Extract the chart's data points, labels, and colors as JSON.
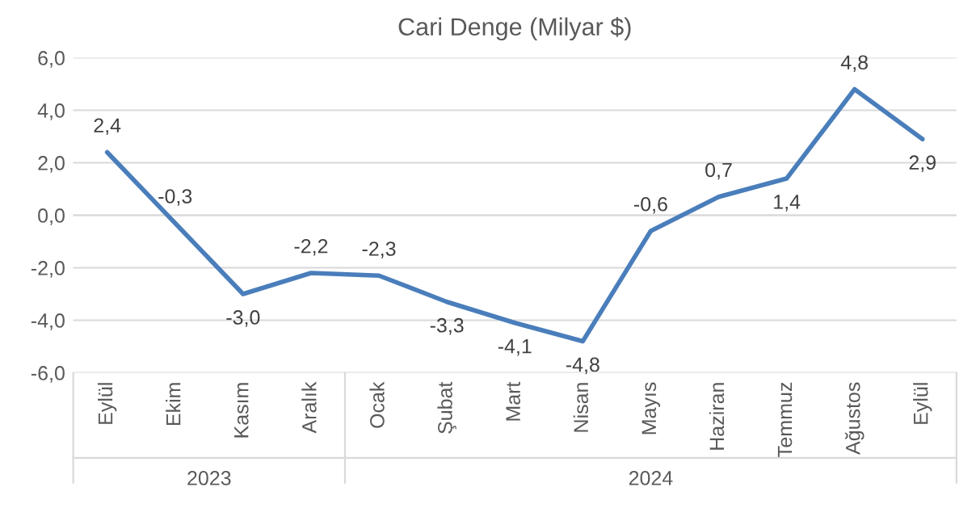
{
  "chart_data": {
    "type": "line",
    "title": "Cari Denge (Milyar $)",
    "categories": [
      "Eylül",
      "Ekim",
      "Kasım",
      "Aralık",
      "Ocak",
      "Şubat",
      "Mart",
      "Nisan",
      "Mayıs",
      "Haziran",
      "Temmuz",
      "Ağustos",
      "Eylül"
    ],
    "series": [
      {
        "color": "#4a7ebb",
        "values": [
          2.4,
          -0.3,
          -3.0,
          -2.2,
          -2.3,
          -3.3,
          -4.1,
          -4.8,
          -0.6,
          0.7,
          1.4,
          4.8,
          2.9
        ],
        "value_labels": [
          "2,4",
          "-0,3",
          "-3,0",
          "-2,2",
          "-2,3",
          "-3,3",
          "-4,1",
          "-4,8",
          "-0,6",
          "0,7",
          "1,4",
          "4,8",
          "2,9"
        ]
      }
    ],
    "ylim": [
      -6,
      6
    ],
    "yticks": [
      {
        "value": -6,
        "label": "-6,0"
      },
      {
        "value": -4,
        "label": "-4,0"
      },
      {
        "value": -2,
        "label": "-2,0"
      },
      {
        "value": 0,
        "label": "0,0"
      },
      {
        "value": 2,
        "label": "2,0"
      },
      {
        "value": 4,
        "label": "4,0"
      },
      {
        "value": 6,
        "label": "6,0"
      }
    ],
    "grid": "y",
    "marker": "none",
    "line_style": "solid",
    "legend": false,
    "annotations": [
      "2023",
      "2024"
    ]
  }
}
